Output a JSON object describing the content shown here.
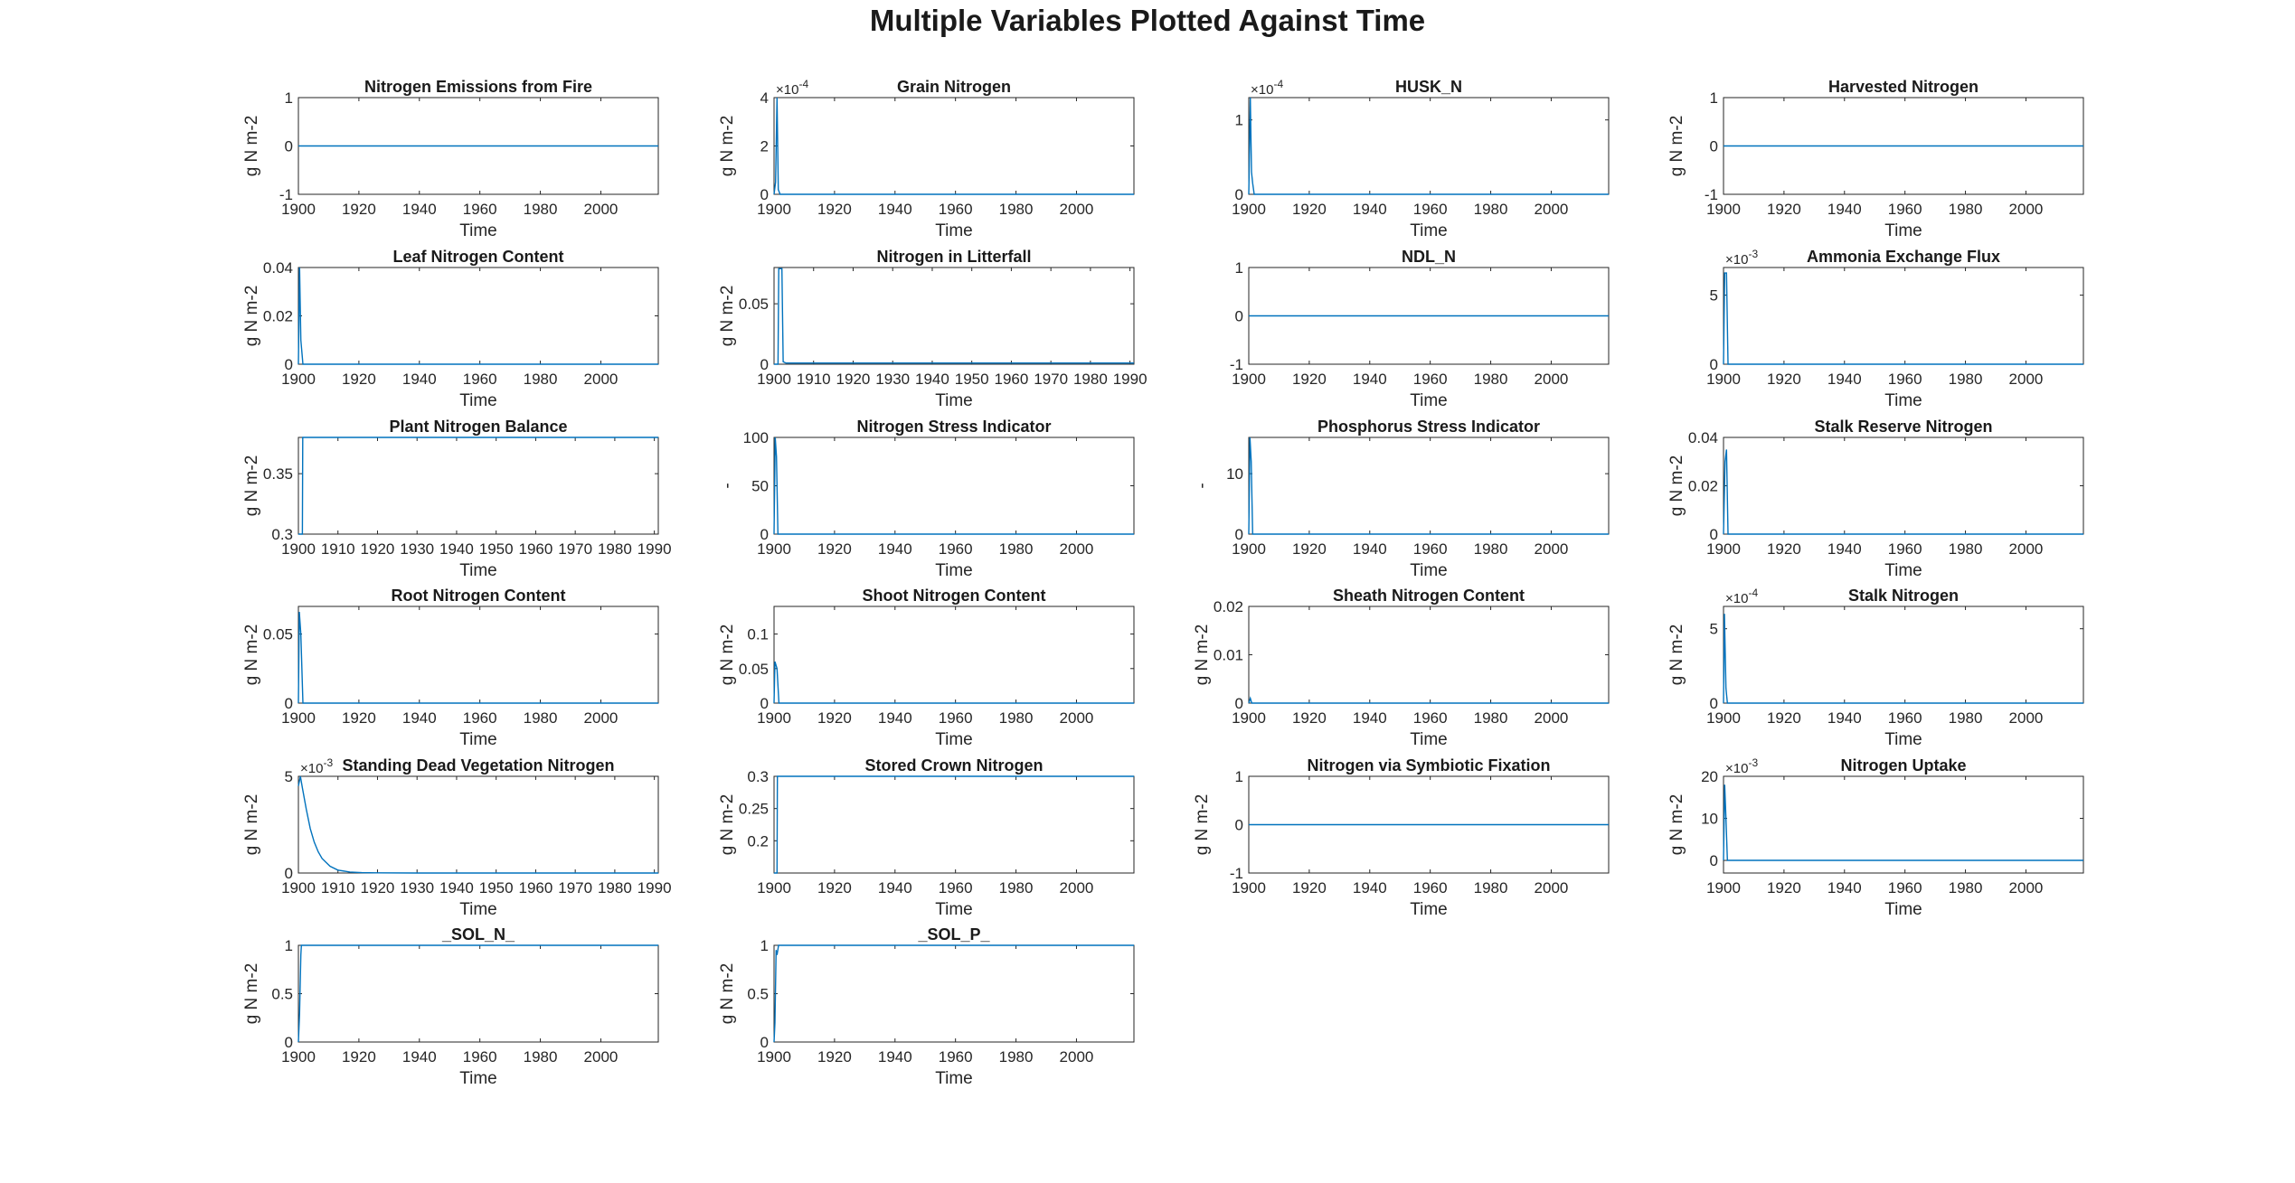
{
  "figure": {
    "title": "Multiple Variables Plotted Against Time",
    "line_color": "#0072BD",
    "axis_color": "#262626"
  },
  "chart_data": [
    {
      "type": "line",
      "title": "Nitrogen Emissions from Fire",
      "xlabel": "Time",
      "ylabel": "g N m-2",
      "xlim": [
        1900,
        2019
      ],
      "ylim": [
        -1,
        1
      ],
      "xticks": [
        1900,
        1920,
        1940,
        1960,
        1980,
        2000
      ],
      "yticks": [
        -1,
        0,
        1
      ],
      "exponent": "",
      "series": [
        {
          "x": [
            1900,
            2019
          ],
          "y": [
            0,
            0
          ]
        }
      ]
    },
    {
      "type": "line",
      "title": "Grain Nitrogen",
      "xlabel": "Time",
      "ylabel": "g N m-2",
      "xlim": [
        1900,
        2019
      ],
      "ylim": [
        0,
        4
      ],
      "xticks": [
        1900,
        1920,
        1940,
        1960,
        1980,
        2000
      ],
      "yticks": [
        0,
        2,
        4
      ],
      "exponent": "×10-4",
      "series": [
        {
          "x": [
            1900,
            1900.5,
            1901,
            1901.4,
            1902,
            2019
          ],
          "y": [
            0,
            0.5,
            4,
            0.2,
            0,
            0
          ]
        }
      ]
    },
    {
      "type": "line",
      "title": "HUSK_N",
      "xlabel": "Time",
      "ylabel": "",
      "xlim": [
        1900,
        2019
      ],
      "ylim": [
        0,
        1.3
      ],
      "xticks": [
        1900,
        1920,
        1940,
        1960,
        1980,
        2000
      ],
      "yticks": [
        0,
        1
      ],
      "exponent": "×10-4",
      "series": [
        {
          "x": [
            1900,
            1900.5,
            1900.9,
            1901.3,
            1901.8,
            2019
          ],
          "y": [
            0,
            1.3,
            0.3,
            0.15,
            0,
            0
          ]
        }
      ]
    },
    {
      "type": "line",
      "title": "Harvested Nitrogen",
      "xlabel": "Time",
      "ylabel": "g N m-2",
      "xlim": [
        1900,
        2019
      ],
      "ylim": [
        -1,
        1
      ],
      "xticks": [
        1900,
        1920,
        1940,
        1960,
        1980,
        2000
      ],
      "yticks": [
        -1,
        0,
        1
      ],
      "exponent": "",
      "series": [
        {
          "x": [
            1900,
            2019
          ],
          "y": [
            0,
            0
          ]
        }
      ]
    },
    {
      "type": "line",
      "title": "Leaf Nitrogen Content",
      "xlabel": "Time",
      "ylabel": "g N m-2",
      "xlim": [
        1900,
        2019
      ],
      "ylim": [
        0,
        0.04
      ],
      "xticks": [
        1900,
        1920,
        1940,
        1960,
        1980,
        2000
      ],
      "yticks": [
        0,
        0.02,
        0.04
      ],
      "exponent": "",
      "series": [
        {
          "x": [
            1900,
            1900.4,
            1900.8,
            1901.5,
            2019
          ],
          "y": [
            0,
            0.04,
            0.01,
            0,
            0
          ]
        }
      ]
    },
    {
      "type": "line",
      "title": "Nitrogen in Litterfall",
      "xlabel": "Time",
      "ylabel": "g N m-2",
      "xlim": [
        1900,
        1991
      ],
      "ylim": [
        0,
        0.08
      ],
      "xticks": [
        1900,
        1910,
        1920,
        1930,
        1940,
        1950,
        1960,
        1970,
        1980,
        1990
      ],
      "yticks": [
        0,
        0.05
      ],
      "exponent": "",
      "series": [
        {
          "x": [
            1900,
            1901,
            1901.2,
            1902,
            1902.3,
            1903,
            1991
          ],
          "y": [
            0,
            0,
            0.079,
            0.079,
            0.002,
            0.001,
            0.001
          ]
        }
      ]
    },
    {
      "type": "line",
      "title": "NDL_N",
      "xlabel": "Time",
      "ylabel": "",
      "xlim": [
        1900,
        2019
      ],
      "ylim": [
        -1,
        1
      ],
      "xticks": [
        1900,
        1920,
        1940,
        1960,
        1980,
        2000
      ],
      "yticks": [
        -1,
        0,
        1
      ],
      "exponent": "",
      "series": [
        {
          "x": [
            1900,
            2019
          ],
          "y": [
            0,
            0
          ]
        }
      ]
    },
    {
      "type": "line",
      "title": "Ammonia Exchange Flux",
      "xlabel": "Time",
      "ylabel": "",
      "xlim": [
        1900,
        2019
      ],
      "ylim": [
        0,
        7
      ],
      "xticks": [
        1900,
        1920,
        1940,
        1960,
        1980,
        2000
      ],
      "yticks": [
        0,
        5
      ],
      "exponent": "×10-3",
      "series": [
        {
          "x": [
            1900,
            1900.4,
            1901,
            1901.5,
            2019
          ],
          "y": [
            0,
            6.6,
            6.6,
            0,
            0
          ]
        }
      ]
    },
    {
      "type": "line",
      "title": "Plant Nitrogen Balance",
      "xlabel": "Time",
      "ylabel": "g N m-2",
      "xlim": [
        1900,
        1991
      ],
      "ylim": [
        0.3,
        0.38
      ],
      "xticks": [
        1900,
        1910,
        1920,
        1930,
        1940,
        1950,
        1960,
        1970,
        1980,
        1990
      ],
      "yticks": [
        0.3,
        0.35
      ],
      "exponent": "",
      "series": [
        {
          "x": [
            1900,
            1901,
            1901.1,
            1991
          ],
          "y": [
            0.3,
            0.3,
            0.38,
            0.38
          ]
        }
      ]
    },
    {
      "type": "line",
      "title": "Nitrogen Stress Indicator",
      "xlabel": "Time",
      "ylabel": "-",
      "xlim": [
        1900,
        2019
      ],
      "ylim": [
        0,
        100
      ],
      "xticks": [
        1900,
        1920,
        1940,
        1960,
        1980,
        2000
      ],
      "yticks": [
        0,
        50,
        100
      ],
      "exponent": "",
      "series": [
        {
          "x": [
            1900,
            1900.4,
            1900.8,
            1901.3,
            2019
          ],
          "y": [
            0,
            100,
            80,
            0,
            0
          ]
        }
      ]
    },
    {
      "type": "line",
      "title": "Phosphorus Stress Indicator",
      "xlabel": "Time",
      "ylabel": "-",
      "xlim": [
        1900,
        2019
      ],
      "ylim": [
        0,
        16
      ],
      "xticks": [
        1900,
        1920,
        1940,
        1960,
        1980,
        2000
      ],
      "yticks": [
        0,
        10
      ],
      "exponent": "",
      "series": [
        {
          "x": [
            1900,
            1900.4,
            1900.8,
            1901.3,
            2019
          ],
          "y": [
            0,
            16,
            12,
            0,
            0
          ]
        }
      ]
    },
    {
      "type": "line",
      "title": "Stalk Reserve Nitrogen",
      "xlabel": "Time",
      "ylabel": "g N m-2",
      "xlim": [
        1900,
        2019
      ],
      "ylim": [
        0,
        0.04
      ],
      "xticks": [
        1900,
        1920,
        1940,
        1960,
        1980,
        2000
      ],
      "yticks": [
        0,
        0.02,
        0.04
      ],
      "exponent": "",
      "series": [
        {
          "x": [
            1900,
            1900.5,
            1901,
            1901.5,
            2019
          ],
          "y": [
            0,
            0.03,
            0.035,
            0,
            0
          ]
        }
      ]
    },
    {
      "type": "line",
      "title": "Root Nitrogen Content",
      "xlabel": "Time",
      "ylabel": "g N m-2",
      "xlim": [
        1900,
        2019
      ],
      "ylim": [
        0,
        0.07
      ],
      "xticks": [
        1900,
        1920,
        1940,
        1960,
        1980,
        2000
      ],
      "yticks": [
        0,
        0.05
      ],
      "exponent": "",
      "series": [
        {
          "x": [
            1900,
            1900.3,
            1900.8,
            1901.5,
            2019
          ],
          "y": [
            0,
            0.066,
            0.05,
            0,
            0
          ]
        }
      ]
    },
    {
      "type": "line",
      "title": "Shoot Nitrogen Content",
      "xlabel": "Time",
      "ylabel": "g N m-2",
      "xlim": [
        1900,
        2019
      ],
      "ylim": [
        0,
        0.14
      ],
      "xticks": [
        1900,
        1920,
        1940,
        1960,
        1980,
        2000
      ],
      "yticks": [
        0,
        0.05,
        0.1
      ],
      "exponent": "",
      "series": [
        {
          "x": [
            1900,
            1900.3,
            1901,
            1901.6,
            2019
          ],
          "y": [
            0,
            0.06,
            0.05,
            0,
            0
          ]
        }
      ]
    },
    {
      "type": "line",
      "title": "Sheath Nitrogen Content",
      "xlabel": "Time",
      "ylabel": "g N m-2",
      "xlim": [
        1900,
        2019
      ],
      "ylim": [
        0,
        0.02
      ],
      "xticks": [
        1900,
        1920,
        1940,
        1960,
        1980,
        2000
      ],
      "yticks": [
        0,
        0.01,
        0.02
      ],
      "exponent": "",
      "series": [
        {
          "x": [
            1900,
            1900.5,
            1901,
            2019
          ],
          "y": [
            0,
            0.001,
            0,
            0
          ]
        }
      ]
    },
    {
      "type": "line",
      "title": "Stalk Nitrogen",
      "xlabel": "Time",
      "ylabel": "g N m-2",
      "xlim": [
        1900,
        2019
      ],
      "ylim": [
        0,
        6.5
      ],
      "xticks": [
        1900,
        1920,
        1940,
        1960,
        1980,
        2000
      ],
      "yticks": [
        0,
        5
      ],
      "exponent": "×10-4",
      "series": [
        {
          "x": [
            1900,
            1900.3,
            1900.8,
            1901.3,
            2019
          ],
          "y": [
            0,
            6,
            1,
            0,
            0
          ]
        }
      ]
    },
    {
      "type": "line",
      "title": "Standing Dead Vegetation Nitrogen",
      "xlabel": "Time",
      "ylabel": "g N m-2",
      "xlim": [
        1900,
        1991
      ],
      "ylim": [
        0,
        5
      ],
      "xticks": [
        1900,
        1910,
        1920,
        1930,
        1940,
        1950,
        1960,
        1970,
        1980,
        1990
      ],
      "yticks": [
        0,
        5
      ],
      "exponent": "×10-3",
      "series": [
        {
          "x": [
            1900,
            1900.5,
            1901,
            1902,
            1903,
            1904,
            1905,
            1906,
            1908,
            1910,
            1913,
            1916,
            1920,
            1930,
            1991
          ],
          "y": [
            4.5,
            5,
            4.4,
            3.3,
            2.3,
            1.6,
            1.1,
            0.75,
            0.35,
            0.15,
            0.05,
            0.02,
            0.01,
            0,
            0
          ]
        }
      ]
    },
    {
      "type": "line",
      "title": "Stored Crown Nitrogen",
      "xlabel": "Time",
      "ylabel": "g N m-2",
      "xlim": [
        1900,
        2019
      ],
      "ylim": [
        0.15,
        0.3
      ],
      "xticks": [
        1900,
        1920,
        1940,
        1960,
        1980,
        2000
      ],
      "yticks": [
        0.2,
        0.25,
        0.3
      ],
      "exponent": "",
      "series": [
        {
          "x": [
            1900,
            1901,
            1901.1,
            2019
          ],
          "y": [
            0.15,
            0.15,
            0.3,
            0.3
          ]
        }
      ]
    },
    {
      "type": "line",
      "title": "Nitrogen via Symbiotic Fixation",
      "xlabel": "Time",
      "ylabel": "g N m-2",
      "xlim": [
        1900,
        2019
      ],
      "ylim": [
        -1,
        1
      ],
      "xticks": [
        1900,
        1920,
        1940,
        1960,
        1980,
        2000
      ],
      "yticks": [
        -1,
        0,
        1
      ],
      "exponent": "",
      "series": [
        {
          "x": [
            1900,
            2019
          ],
          "y": [
            0,
            0
          ]
        }
      ]
    },
    {
      "type": "line",
      "title": "Nitrogen Uptake",
      "xlabel": "Time",
      "ylabel": "g N m-2",
      "xlim": [
        1900,
        2019
      ],
      "ylim": [
        -3,
        20
      ],
      "xticks": [
        1900,
        1920,
        1940,
        1960,
        1980,
        2000
      ],
      "yticks": [
        0,
        10,
        20
      ],
      "exponent": "×10-3",
      "series": [
        {
          "x": [
            1900,
            1900.4,
            1900.8,
            1901.3,
            2019
          ],
          "y": [
            0,
            18,
            10,
            0,
            0
          ]
        }
      ]
    },
    {
      "type": "line",
      "title": "_SOL_N_",
      "xlabel": "Time",
      "ylabel": "g N m-2",
      "xlim": [
        1900,
        2019
      ],
      "ylim": [
        0,
        1
      ],
      "xticks": [
        1900,
        1920,
        1940,
        1960,
        1980,
        2000
      ],
      "yticks": [
        0,
        0.5,
        1
      ],
      "exponent": "",
      "series": [
        {
          "x": [
            1900,
            1900.4,
            1900.8,
            1901,
            2019
          ],
          "y": [
            0,
            0.3,
            0.9,
            1,
            1
          ]
        }
      ]
    },
    {
      "type": "line",
      "title": "_SOL_P_",
      "xlabel": "Time",
      "ylabel": "g N m-2",
      "xlim": [
        1900,
        2019
      ],
      "ylim": [
        0,
        1
      ],
      "xticks": [
        1900,
        1920,
        1940,
        1960,
        1980,
        2000
      ],
      "yticks": [
        0,
        0.5,
        1
      ],
      "exponent": "",
      "series": [
        {
          "x": [
            1900,
            1900.3,
            1900.7,
            1901,
            1901.5,
            2019
          ],
          "y": [
            0,
            0.2,
            0.95,
            0.9,
            1,
            1
          ]
        }
      ]
    }
  ]
}
